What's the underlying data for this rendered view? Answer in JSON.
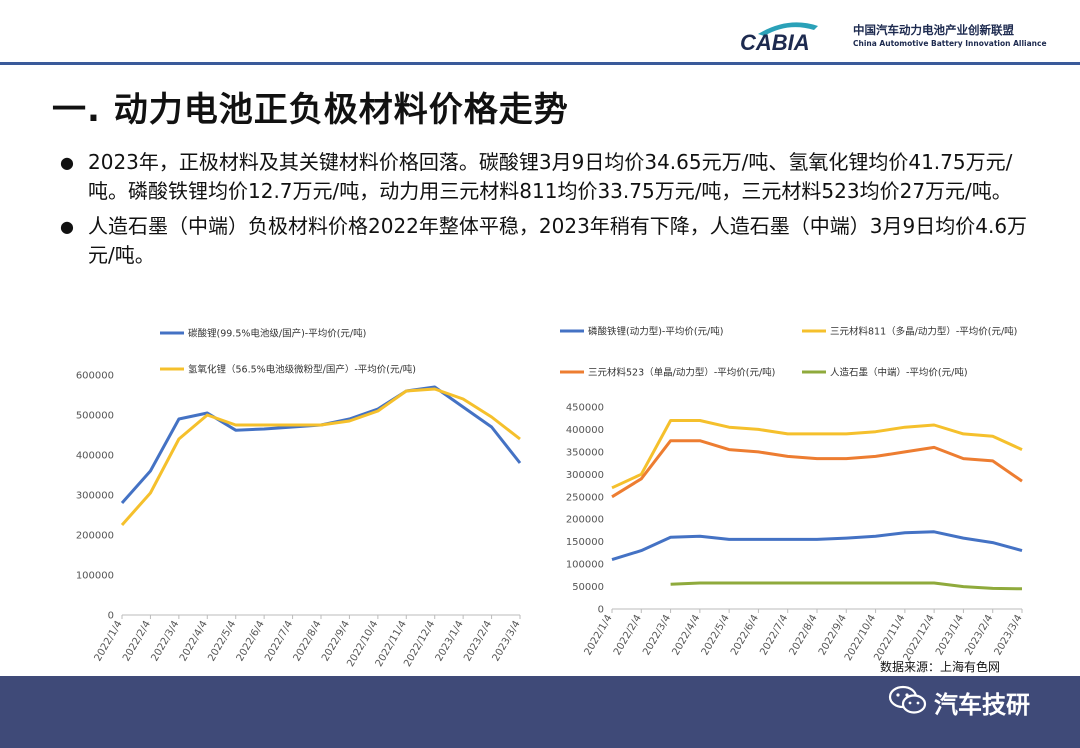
{
  "header": {
    "logo_mark": "CABIA",
    "org_cn": "中国汽车动力电池产业创新联盟",
    "org_en": "China Automotive Battery Innovation Alliance"
  },
  "title": "一. 动力电池正负极材料价格走势",
  "bullets": [
    "2023年，正极材料及其关键材料价格回落。碳酸锂3月9日均价34.65元万/吨、氢氧化锂均价41.75万元/吨。磷酸铁锂均价12.7万元/吨，动力用三元材料811均价33.75万元/吨，三元材料523均价27万元/吨。",
    "人造石墨（中端）负极材料价格2022年整体平稳，2023年稍有下降，人造石墨（中端）3月9日均价4.6万元/吨。"
  ],
  "source": "数据来源：上海有色网",
  "watermark": "汽车技研",
  "chart_data": [
    {
      "type": "line",
      "x": [
        "2022/1/4",
        "2022/2/4",
        "2022/3/4",
        "2022/4/4",
        "2022/5/4",
        "2022/6/4",
        "2022/7/4",
        "2022/8/4",
        "2022/9/4",
        "2022/10/4",
        "2022/11/4",
        "2022/12/4",
        "2023/1/4",
        "2023/2/4",
        "2023/3/4"
      ],
      "series": [
        {
          "name": "碳酸锂(99.5%电池级/国产)-平均价(元/吨)",
          "color": "#4472c4",
          "values": [
            280000,
            360000,
            490000,
            505000,
            462000,
            465000,
            470000,
            475000,
            490000,
            515000,
            560000,
            570000,
            520000,
            470000,
            380000
          ]
        },
        {
          "name": "氢氧化锂（56.5%电池级微粉型/国产）-平均价(元/吨)",
          "color": "#f5c02c",
          "values": [
            225000,
            305000,
            440000,
            500000,
            475000,
            475000,
            475000,
            475000,
            485000,
            510000,
            560000,
            565000,
            540000,
            495000,
            440000
          ]
        }
      ],
      "yticks": [
        0,
        100000,
        200000,
        300000,
        400000,
        500000,
        600000
      ],
      "ylim": [
        0,
        600000
      ]
    },
    {
      "type": "line",
      "x": [
        "2022/1/4",
        "2022/2/4",
        "2022/3/4",
        "2022/4/4",
        "2022/5/4",
        "2022/6/4",
        "2022/7/4",
        "2022/8/4",
        "2022/9/4",
        "2022/10/4",
        "2022/11/4",
        "2022/12/4",
        "2023/1/4",
        "2023/2/4",
        "2023/3/4"
      ],
      "series": [
        {
          "name": "磷酸铁锂(动力型)-平均价(元/吨)",
          "color": "#4472c4",
          "values": [
            110000,
            130000,
            160000,
            162000,
            155000,
            155000,
            155000,
            155000,
            158000,
            162000,
            170000,
            172000,
            158000,
            148000,
            130000
          ]
        },
        {
          "name": "三元材料811（多晶/动力型）-平均价(元/吨)",
          "color": "#f5c02c",
          "values": [
            270000,
            300000,
            420000,
            420000,
            405000,
            400000,
            390000,
            390000,
            390000,
            395000,
            405000,
            410000,
            390000,
            385000,
            355000
          ]
        },
        {
          "name": "三元材料523（单晶/动力型）-平均价(元/吨)",
          "color": "#ed7d31",
          "values": [
            250000,
            290000,
            375000,
            375000,
            355000,
            350000,
            340000,
            335000,
            335000,
            340000,
            350000,
            360000,
            335000,
            330000,
            285000
          ]
        },
        {
          "name": "人造石墨（中端）-平均价(元/吨)",
          "color": "#8faa3c",
          "values": [
            null,
            null,
            55000,
            58000,
            58000,
            58000,
            58000,
            58000,
            58000,
            58000,
            58000,
            58000,
            50000,
            46000,
            45000
          ]
        }
      ],
      "yticks": [
        0,
        50000,
        100000,
        150000,
        200000,
        250000,
        300000,
        350000,
        400000,
        450000
      ],
      "ylim": [
        0,
        450000
      ]
    }
  ]
}
